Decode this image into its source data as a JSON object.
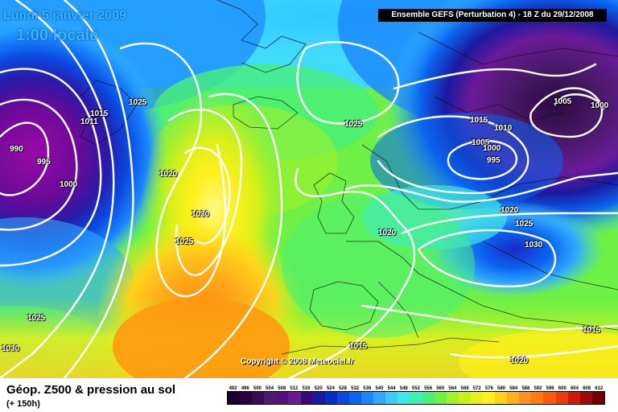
{
  "header": {
    "date": "Lundi 5 janvier 2009",
    "local_time": "1:00 locale",
    "run_info": "Ensemble GEFS (Perturbation 4)  -  18 Z du 29/12/2008"
  },
  "copyright": "Copyright © 2008 Meteociel.fr",
  "footer": {
    "title": "Géop. Z500 & pression au sol",
    "subtitle": "(+ 150h)"
  },
  "scale": {
    "labels": [
      "492",
      "496",
      "500",
      "504",
      "508",
      "512",
      "516",
      "520",
      "524",
      "528",
      "532",
      "536",
      "540",
      "544",
      "548",
      "552",
      "556",
      "560",
      "564",
      "568",
      "572",
      "576",
      "580",
      "584",
      "588",
      "592",
      "596",
      "600",
      "604",
      "608",
      "612"
    ],
    "colors": [
      "#1a0030",
      "#2a003f",
      "#3d0a55",
      "#4d1a6e",
      "#56107a",
      "#6a1a98",
      "#3a0a7a",
      "#1a1aa0",
      "#0a2cc8",
      "#0a48e0",
      "#0a64f0",
      "#1a86ff",
      "#30a8ff",
      "#40c8ff",
      "#3ee6e6",
      "#3ef0b0",
      "#46f07a",
      "#6ef046",
      "#a0f02a",
      "#c8f01a",
      "#e8f01a",
      "#fff01a",
      "#ffd21a",
      "#ffb21a",
      "#ff921a",
      "#ff7a10",
      "#ff5a0a",
      "#f03a0a",
      "#d01a0a",
      "#a00a0a",
      "#700000"
    ]
  },
  "isobars": [
    {
      "value": "990"
    },
    {
      "value": "995"
    },
    {
      "value": "1000"
    },
    {
      "value": "1015"
    },
    {
      "value": "1011"
    },
    {
      "value": "1025"
    },
    {
      "value": "1020"
    },
    {
      "value": "1030"
    },
    {
      "value": "1025"
    },
    {
      "value": "1025"
    },
    {
      "value": "1030"
    },
    {
      "value": "1025"
    },
    {
      "value": "1020"
    },
    {
      "value": "1015"
    },
    {
      "value": "1010"
    },
    {
      "value": "1005"
    },
    {
      "value": "1000"
    },
    {
      "value": "995"
    },
    {
      "value": "1005"
    },
    {
      "value": "1000"
    },
    {
      "value": "1020"
    },
    {
      "value": "1025"
    },
    {
      "value": "1030"
    },
    {
      "value": "1015"
    },
    {
      "value": "1020"
    },
    {
      "value": "1015"
    }
  ]
}
